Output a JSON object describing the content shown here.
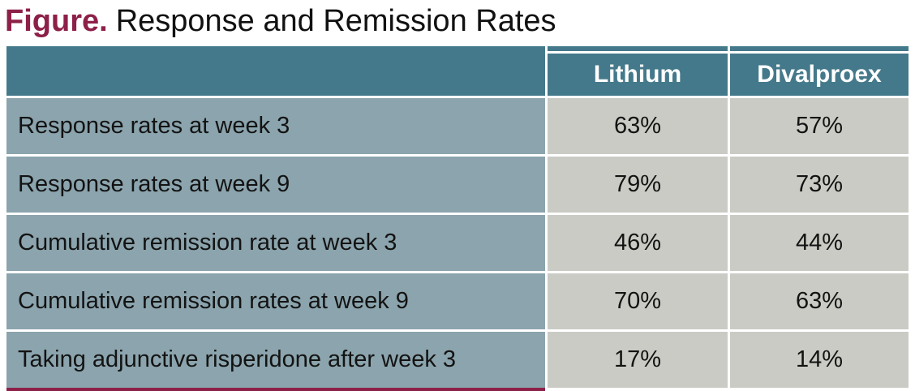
{
  "title": {
    "prefix": "Figure.",
    "text": "Response and Remission Rates"
  },
  "table": {
    "header": {
      "row_label_column": "",
      "col1": "Lithium",
      "col2": "Divalproex"
    },
    "rows": [
      {
        "label": "Response rates at week 3",
        "lithium": "63%",
        "divalproex": "57%"
      },
      {
        "label": "Response rates at week 9",
        "lithium": "79%",
        "divalproex": "73%"
      },
      {
        "label": "Cumulative remission rate at week 3",
        "lithium": "46%",
        "divalproex": "44%"
      },
      {
        "label": "Cumulative remission rates at week 9",
        "lithium": "70%",
        "divalproex": "63%"
      },
      {
        "label": "Taking adjunctive risperidone after week 3",
        "lithium": "17%",
        "divalproex": "14%"
      }
    ]
  },
  "colors": {
    "accent_maroon": "#8D2048",
    "header_teal": "#44798B",
    "row_label_bg": "#8BA4AD",
    "value_cell_bg": "#CBCBC5",
    "gridline": "#FFFFFF",
    "header_text": "#FFFFFF",
    "body_text": "#131313"
  },
  "chart_data": {
    "type": "table",
    "title": "Figure. Response and Remission Rates",
    "categories": [
      "Response rates at week 3",
      "Response rates at week 9",
      "Cumulative remission rate at week 3",
      "Cumulative remission rates at week 9",
      "Taking adjunctive risperidone after week 3"
    ],
    "series": [
      {
        "name": "Lithium",
        "values": [
          63,
          79,
          46,
          70,
          17
        ]
      },
      {
        "name": "Divalproex",
        "values": [
          57,
          73,
          44,
          63,
          14
        ]
      }
    ],
    "unit": "%",
    "legend_position": "column-headers",
    "grid": "white 3px gridlines between cells"
  }
}
